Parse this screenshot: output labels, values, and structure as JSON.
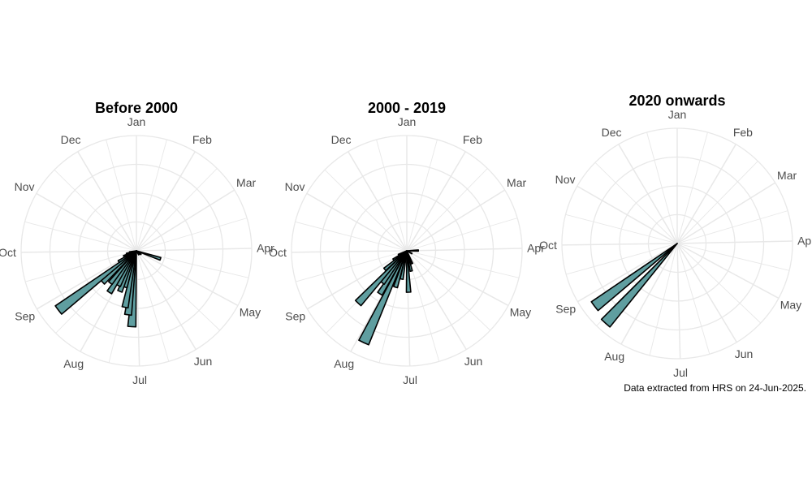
{
  "caption": "Data extracted from HRS on 24-Jun-2025.",
  "colors": {
    "bar_fill": "#5f9ea0",
    "bar_stroke": "#000000",
    "grid": "#e8e8e8",
    "label": "#4d4d4d",
    "background": "#ffffff"
  },
  "chart_data": [
    {
      "type": "polar-bar",
      "title": "Before 2000",
      "angle_unit": "day of year (0 = 1 Jan, clockwise from top)",
      "month_labels": [
        "Jan",
        "Feb",
        "Mar",
        "Apr",
        "May",
        "Jun",
        "Jul",
        "Aug",
        "Sep",
        "Oct",
        "Nov",
        "Dec"
      ],
      "r_max": 1.0,
      "grid": true,
      "bars": [
        {
          "day": 186,
          "value": 0.66
        },
        {
          "day": 190,
          "value": 0.56
        },
        {
          "day": 194,
          "value": 0.5
        },
        {
          "day": 200,
          "value": 0.33
        },
        {
          "day": 205,
          "value": 0.38
        },
        {
          "day": 210,
          "value": 0.34
        },
        {
          "day": 216,
          "value": 0.43
        },
        {
          "day": 222,
          "value": 0.36
        },
        {
          "day": 230,
          "value": 0.4
        },
        {
          "day": 236,
          "value": 0.85
        },
        {
          "day": 242,
          "value": 0.18
        },
        {
          "day": 250,
          "value": 0.12
        },
        {
          "day": 257,
          "value": 0.09
        },
        {
          "day": 263,
          "value": 0.06
        },
        {
          "day": 110,
          "value": 0.22
        },
        {
          "day": 130,
          "value": 0.05
        },
        {
          "day": 150,
          "value": 0.04
        }
      ]
    },
    {
      "type": "polar-bar",
      "title": "2000 - 2019",
      "angle_unit": "day of year (0 = 1 Jan, clockwise from top)",
      "month_labels": [
        "Jan",
        "Feb",
        "Mar",
        "Apr",
        "May",
        "Jun",
        "Jul",
        "Aug",
        "Sep",
        "Oct",
        "Nov",
        "Dec"
      ],
      "r_max": 1.0,
      "grid": true,
      "bars": [
        {
          "day": 208,
          "value": 0.88
        },
        {
          "day": 200,
          "value": 0.33
        },
        {
          "day": 193,
          "value": 0.25
        },
        {
          "day": 180,
          "value": 0.36
        },
        {
          "day": 170,
          "value": 0.18
        },
        {
          "day": 160,
          "value": 0.12
        },
        {
          "day": 215,
          "value": 0.44
        },
        {
          "day": 220,
          "value": 0.35
        },
        {
          "day": 226,
          "value": 0.62
        },
        {
          "day": 233,
          "value": 0.25
        },
        {
          "day": 240,
          "value": 0.14
        },
        {
          "day": 248,
          "value": 0.08
        },
        {
          "day": 90,
          "value": 0.1
        },
        {
          "day": 120,
          "value": 0.05
        }
      ]
    },
    {
      "type": "polar-bar",
      "title": "2020 onwards",
      "angle_unit": "day of year (0 = 1 Jan, clockwise from top)",
      "month_labels": [
        "Jan",
        "Feb",
        "Mar",
        "Apr",
        "May",
        "Jun",
        "Jul",
        "Aug",
        "Sep",
        "Oct",
        "Nov",
        "Dec"
      ],
      "r_max": 1.0,
      "grid": true,
      "bars": [
        {
          "day": 225,
          "value": 0.93
        },
        {
          "day": 236,
          "value": 0.9
        }
      ]
    }
  ]
}
